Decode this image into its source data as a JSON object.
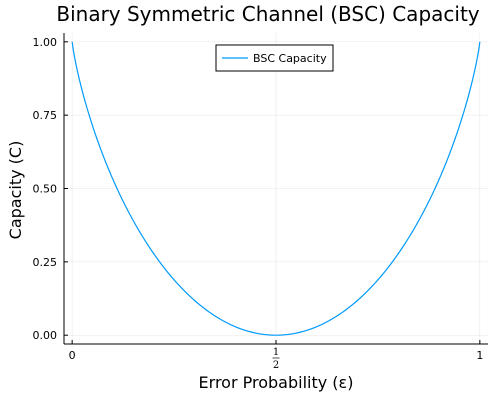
{
  "chart_data": {
    "type": "line",
    "title": "Binary Symmetric Channel (BSC) Capacity",
    "xlabel": "Error Probability (ε)",
    "ylabel": "Capacity (C)",
    "xlim": [
      -0.02,
      1.02
    ],
    "ylim": [
      -0.03,
      1.03
    ],
    "grid": true,
    "legend_position": "top-center",
    "x_ticks": [
      {
        "value": 0,
        "label": "0"
      },
      {
        "value": 0.5,
        "numerator": "1",
        "denominator": "2"
      },
      {
        "value": 1,
        "label": "1"
      }
    ],
    "y_ticks": [
      {
        "value": 0,
        "label": "0.00"
      },
      {
        "value": 0.25,
        "label": "0.25"
      },
      {
        "value": 0.5,
        "label": "0.50"
      },
      {
        "value": 0.75,
        "label": "0.75"
      },
      {
        "value": 1,
        "label": "1.00"
      }
    ],
    "series": [
      {
        "name": "BSC Capacity",
        "color": "#009AFA",
        "x": [
          0,
          0.01,
          0.02,
          0.05,
          0.1,
          0.15,
          0.2,
          0.25,
          0.3,
          0.35,
          0.4,
          0.45,
          0.5,
          0.55,
          0.6,
          0.65,
          0.7,
          0.75,
          0.8,
          0.85,
          0.9,
          0.95,
          0.98,
          0.99,
          1
        ],
        "y": [
          1,
          0.919,
          0.859,
          0.714,
          0.531,
          0.39,
          0.278,
          0.189,
          0.119,
          0.066,
          0.029,
          0.007,
          0,
          0.007,
          0.029,
          0.066,
          0.119,
          0.189,
          0.278,
          0.39,
          0.531,
          0.714,
          0.859,
          0.919,
          1
        ]
      }
    ]
  }
}
